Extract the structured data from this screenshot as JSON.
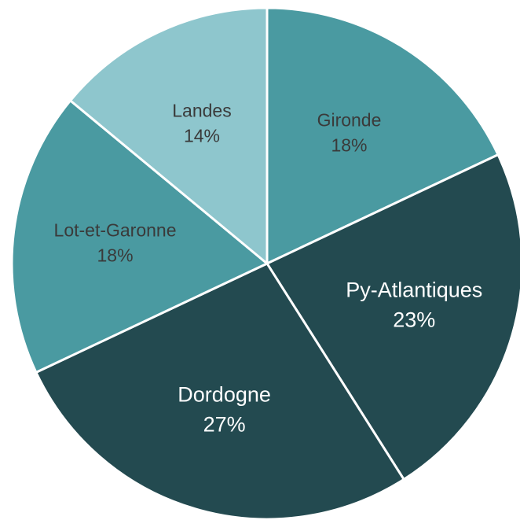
{
  "chart_data": {
    "type": "pie",
    "categories": [
      "Gironde",
      "Py-Atlantiques",
      "Dordogne",
      "Lot-et-Garonne",
      "Landes"
    ],
    "values": [
      18,
      23,
      27,
      18,
      14
    ],
    "value_labels": [
      "18%",
      "23%",
      "27%",
      "18%",
      "14%"
    ],
    "colors": [
      "#4a9aa1",
      "#234a50",
      "#234a50",
      "#4a9aa1",
      "#8ec6cd"
    ]
  }
}
